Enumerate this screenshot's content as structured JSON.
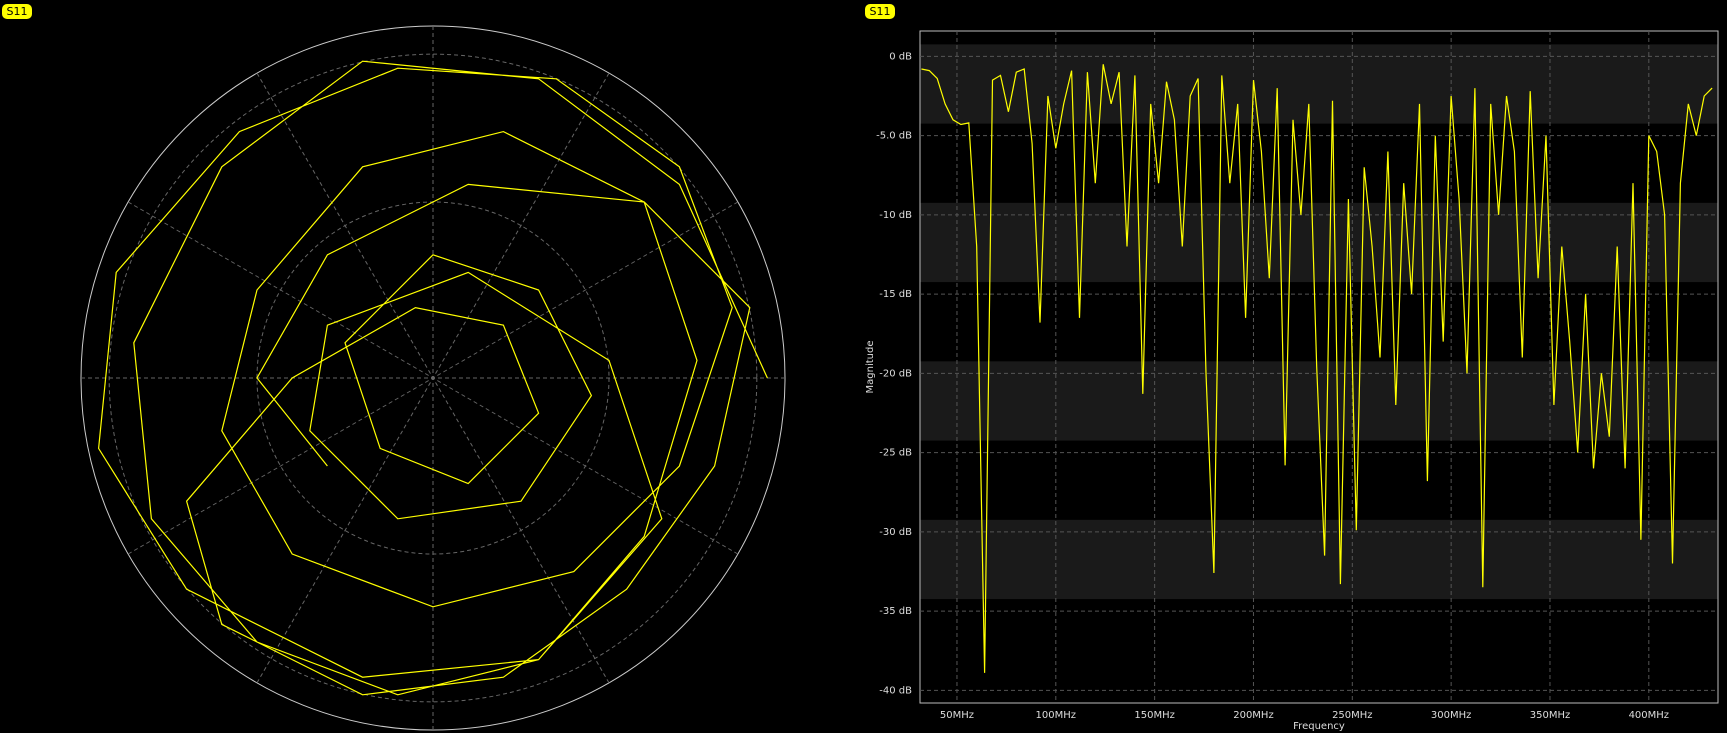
{
  "chart_data": [
    {
      "type": "polar",
      "grid": true,
      "xlim": [
        -1,
        1
      ],
      "ylim": [
        -1,
        1
      ],
      "series": [
        {
          "name": "S11",
          "color": "#ffff00",
          "x": [
            0.95,
            0.7,
            0.3,
            -0.2,
            -0.6,
            -0.85,
            -0.8,
            -0.5,
            -0.1,
            0.3,
            0.6,
            0.75,
            0.6,
            0.2,
            -0.2,
            -0.5,
            -0.6,
            -0.4,
            0,
            0.4,
            0.7,
            0.85,
            0.7,
            0.35,
            -0.1,
            -0.55,
            -0.9,
            -0.95,
            -0.7,
            -0.2,
            0.3,
            0.65,
            0.5,
            0.1,
            -0.3,
            -0.35,
            -0.1,
            0.25,
            0.45,
            0.3,
            0,
            -0.25,
            -0.15,
            0.1,
            0.3,
            0.2,
            -0.05,
            -0.4,
            -0.7,
            -0.6,
            -0.2,
            0.2,
            0.55,
            0.8,
            0.9,
            0.6,
            0.1,
            -0.3,
            -0.5,
            -0.3
          ],
          "y": [
            0,
            0.55,
            0.85,
            0.9,
            0.6,
            0.1,
            -0.4,
            -0.75,
            -0.9,
            -0.8,
            -0.45,
            0.05,
            0.5,
            0.7,
            0.6,
            0.25,
            -0.15,
            -0.5,
            -0.65,
            -0.55,
            -0.25,
            0.2,
            0.6,
            0.85,
            0.88,
            0.7,
            0.3,
            -0.2,
            -0.6,
            -0.85,
            -0.8,
            -0.4,
            0.05,
            0.3,
            0.15,
            -0.15,
            -0.4,
            -0.35,
            -0.05,
            0.25,
            0.35,
            0.1,
            -0.2,
            -0.3,
            -0.1,
            0.15,
            0.2,
            0,
            -0.35,
            -0.7,
            -0.9,
            -0.85,
            -0.6,
            -0.25,
            0.2,
            0.5,
            0.55,
            0.35,
            0,
            -0.25
          ]
        }
      ]
    },
    {
      "type": "line",
      "grid": true,
      "xlabel": "Frequency",
      "ylabel": "Magnitude",
      "xlim": [
        31.3,
        435
      ],
      "ylim": [
        -40.8,
        1.6
      ],
      "xticks": [
        {
          "value": 50,
          "label": "50MHz"
        },
        {
          "value": 100,
          "label": "100MHz"
        },
        {
          "value": 150,
          "label": "150MHz"
        },
        {
          "value": 200,
          "label": "200MHz"
        },
        {
          "value": 250,
          "label": "250MHz"
        },
        {
          "value": 300,
          "label": "300MHz"
        },
        {
          "value": 350,
          "label": "350MHz"
        },
        {
          "value": 400,
          "label": "400MHz"
        }
      ],
      "yticks": [
        {
          "value": 0,
          "label": "0 dB"
        },
        {
          "value": -5,
          "label": "-5.0 dB"
        },
        {
          "value": -10,
          "label": "-10 dB"
        },
        {
          "value": -15,
          "label": "-15 dB"
        },
        {
          "value": -20,
          "label": "-20 dB"
        },
        {
          "value": -25,
          "label": "-25 dB"
        },
        {
          "value": -30,
          "label": "-30 dB"
        },
        {
          "value": -35,
          "label": "-35 dB"
        },
        {
          "value": -40,
          "label": "-40 dB"
        }
      ],
      "series": [
        {
          "name": "S11",
          "color": "#ffff00",
          "x": [
            32,
            36,
            40,
            44,
            48,
            52,
            56,
            60,
            64,
            68,
            72,
            76,
            80,
            84,
            88,
            92,
            96,
            100,
            104,
            108,
            112,
            116,
            120,
            124,
            128,
            132,
            136,
            140,
            144,
            148,
            152,
            156,
            160,
            164,
            168,
            172,
            176,
            180,
            184,
            188,
            192,
            196,
            200,
            204,
            208,
            212,
            216,
            220,
            224,
            228,
            232,
            236,
            240,
            244,
            248,
            252,
            256,
            260,
            264,
            268,
            272,
            276,
            280,
            284,
            288,
            292,
            296,
            300,
            304,
            308,
            312,
            316,
            320,
            324,
            328,
            332,
            336,
            340,
            344,
            348,
            352,
            356,
            360,
            364,
            368,
            372,
            376,
            380,
            384,
            388,
            392,
            396,
            400,
            404,
            408,
            412,
            416,
            420,
            424,
            428,
            432
          ],
          "values": [
            -0.8,
            -0.9,
            -1.4,
            -3.0,
            -4.0,
            -4.3,
            -4.2,
            -12,
            -38.9,
            -1.5,
            -1.2,
            -3.5,
            -1.0,
            -0.8,
            -5.5,
            -16.8,
            -2.5,
            -5.8,
            -3.0,
            -0.9,
            -16.5,
            -1.0,
            -8.0,
            -0.5,
            -3.0,
            -1.0,
            -12,
            -1.2,
            -21.3,
            -3.0,
            -8.0,
            -1.6,
            -4.0,
            -12,
            -2.5,
            -1.4,
            -20,
            -32.6,
            -1.2,
            -8.0,
            -3.0,
            -16.5,
            -1.5,
            -6.0,
            -14,
            -2.0,
            -25.8,
            -4.0,
            -10,
            -3.0,
            -19.6,
            -31.5,
            -2.8,
            -33.3,
            -9.0,
            -29.9,
            -7.0,
            -12,
            -19,
            -6.0,
            -22,
            -8.0,
            -15,
            -3.0,
            -26.8,
            -5.0,
            -18,
            -2.5,
            -9.0,
            -20,
            -2.0,
            -33.5,
            -3.0,
            -10,
            -2.5,
            -6.0,
            -19,
            -2.2,
            -14,
            -5.0,
            -22,
            -12,
            -18,
            -25,
            -15,
            -26,
            -20,
            -24,
            -12,
            -26,
            -8.0,
            -30.5,
            -5.0,
            -6.0,
            -10,
            -32,
            -8.0,
            -3.0,
            -5.0,
            -2.5,
            -2.0
          ]
        }
      ]
    }
  ]
}
